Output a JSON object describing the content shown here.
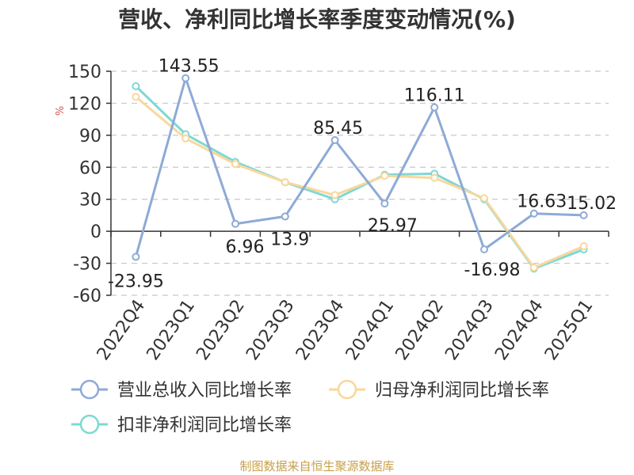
{
  "title": "营收、净利同比增长率季度变动情况(%)",
  "source": "制图数据来自恒生聚源数据库",
  "chart_data": {
    "type": "line",
    "title": "营收、净利同比增长率季度变动情况(%)",
    "ylabel": "%",
    "xlabel": "",
    "ylim": [
      -60,
      150
    ],
    "yticks": [
      -60,
      -30,
      0,
      30,
      60,
      90,
      120,
      150
    ],
    "grid": true,
    "legend_position": "bottom",
    "categories": [
      "2022Q4",
      "2023Q1",
      "2023Q2",
      "2023Q3",
      "2023Q4",
      "2024Q1",
      "2024Q2",
      "2024Q3",
      "2024Q4",
      "2025Q1"
    ],
    "series": [
      {
        "name": "营业总收入同比增长率",
        "color": "#8eaad6",
        "values": [
          -23.95,
          143.55,
          6.96,
          13.9,
          85.45,
          25.97,
          116.11,
          -16.98,
          16.63,
          15.02
        ],
        "labels": [
          "-23.95",
          "143.55",
          "6.96",
          "13.9",
          "85.45",
          "25.97",
          "116.11",
          "-16.98",
          "16.63",
          "15.02"
        ]
      },
      {
        "name": "归母净利润同比增长率",
        "color": "#f9d79b",
        "values": [
          126,
          87,
          63,
          46,
          34,
          52,
          50,
          31,
          -34,
          -14
        ]
      },
      {
        "name": "扣非净利润同比增长率",
        "color": "#7fd8d4",
        "values": [
          136,
          91,
          65,
          46,
          30,
          53,
          54,
          30,
          -35,
          -17
        ]
      }
    ]
  }
}
